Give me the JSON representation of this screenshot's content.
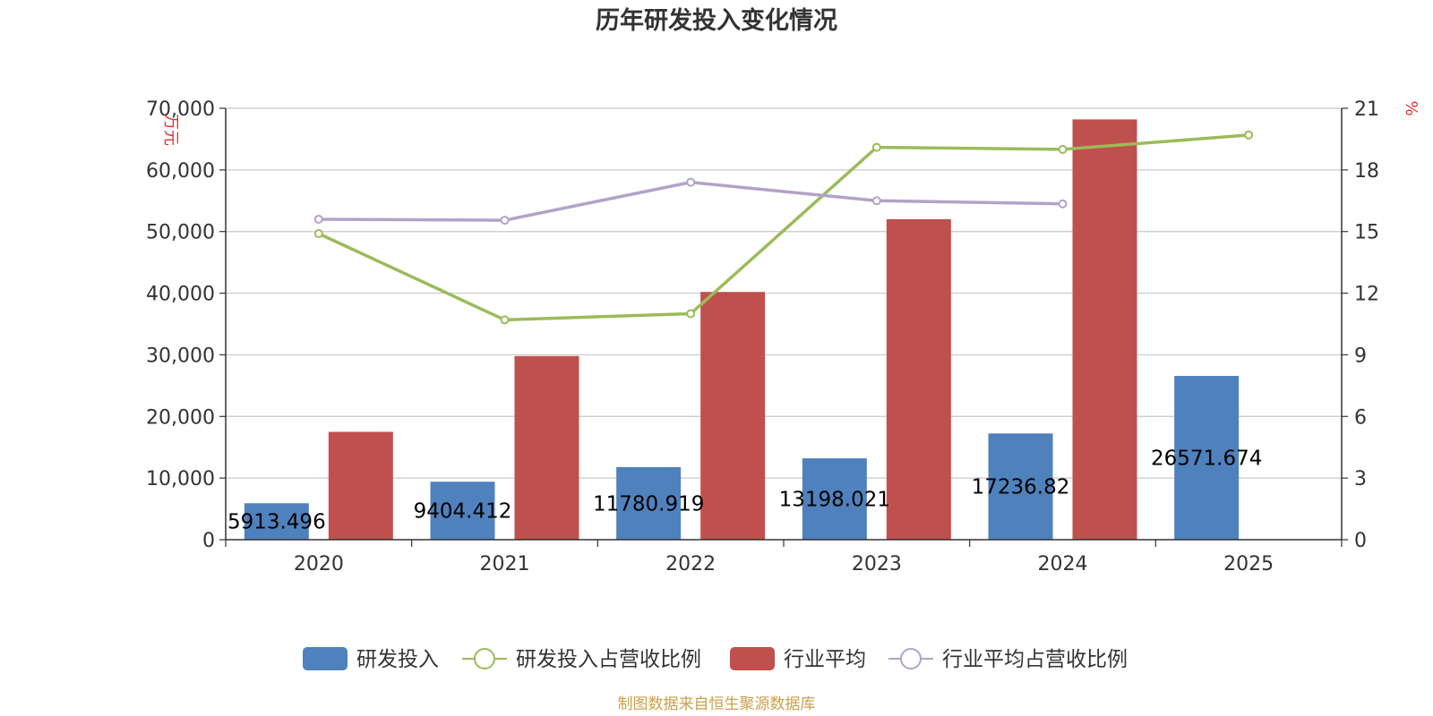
{
  "chart_data": {
    "type": "bar",
    "title": "历年研发投入变化情况",
    "categories": [
      "2020",
      "2021",
      "2022",
      "2023",
      "2024",
      "2025"
    ],
    "y_left": {
      "label": "万元",
      "range": [
        0,
        70000
      ],
      "ticks": [
        "0",
        "10,000",
        "20,000",
        "30,000",
        "40,000",
        "50,000",
        "60,000",
        "70,000"
      ]
    },
    "y_right": {
      "label": "%",
      "range": [
        0,
        21
      ],
      "ticks": [
        "0",
        "3",
        "6",
        "9",
        "12",
        "15",
        "18",
        "21"
      ]
    },
    "grid": true,
    "legend_position": "bottom",
    "series": [
      {
        "name": "研发投入",
        "type": "bar",
        "axis": "left",
        "color": "#4f81bd",
        "values": [
          5913.496,
          9404.412,
          11780.919,
          13198.021,
          17236.82,
          26571.674
        ],
        "labels": [
          "5913.496",
          "9404.412",
          "11780.919",
          "13198.021",
          "17236.82",
          "26571.674"
        ]
      },
      {
        "name": "研发投入占营收比例",
        "type": "line",
        "axis": "right",
        "color": "#9bbb59",
        "values": [
          14.9,
          10.7,
          11.0,
          19.1,
          19.0,
          19.7
        ]
      },
      {
        "name": "行业平均",
        "type": "bar",
        "axis": "left",
        "color": "#c0504d",
        "values": [
          17500,
          29800,
          40200,
          52000,
          68200,
          null
        ]
      },
      {
        "name": "行业平均占营收比例",
        "type": "line",
        "axis": "right",
        "color": "#b3a2c7",
        "values": [
          15.6,
          15.55,
          17.4,
          16.5,
          16.35,
          null
        ]
      }
    ],
    "source": "制图数据来自恒生聚源数据库"
  }
}
